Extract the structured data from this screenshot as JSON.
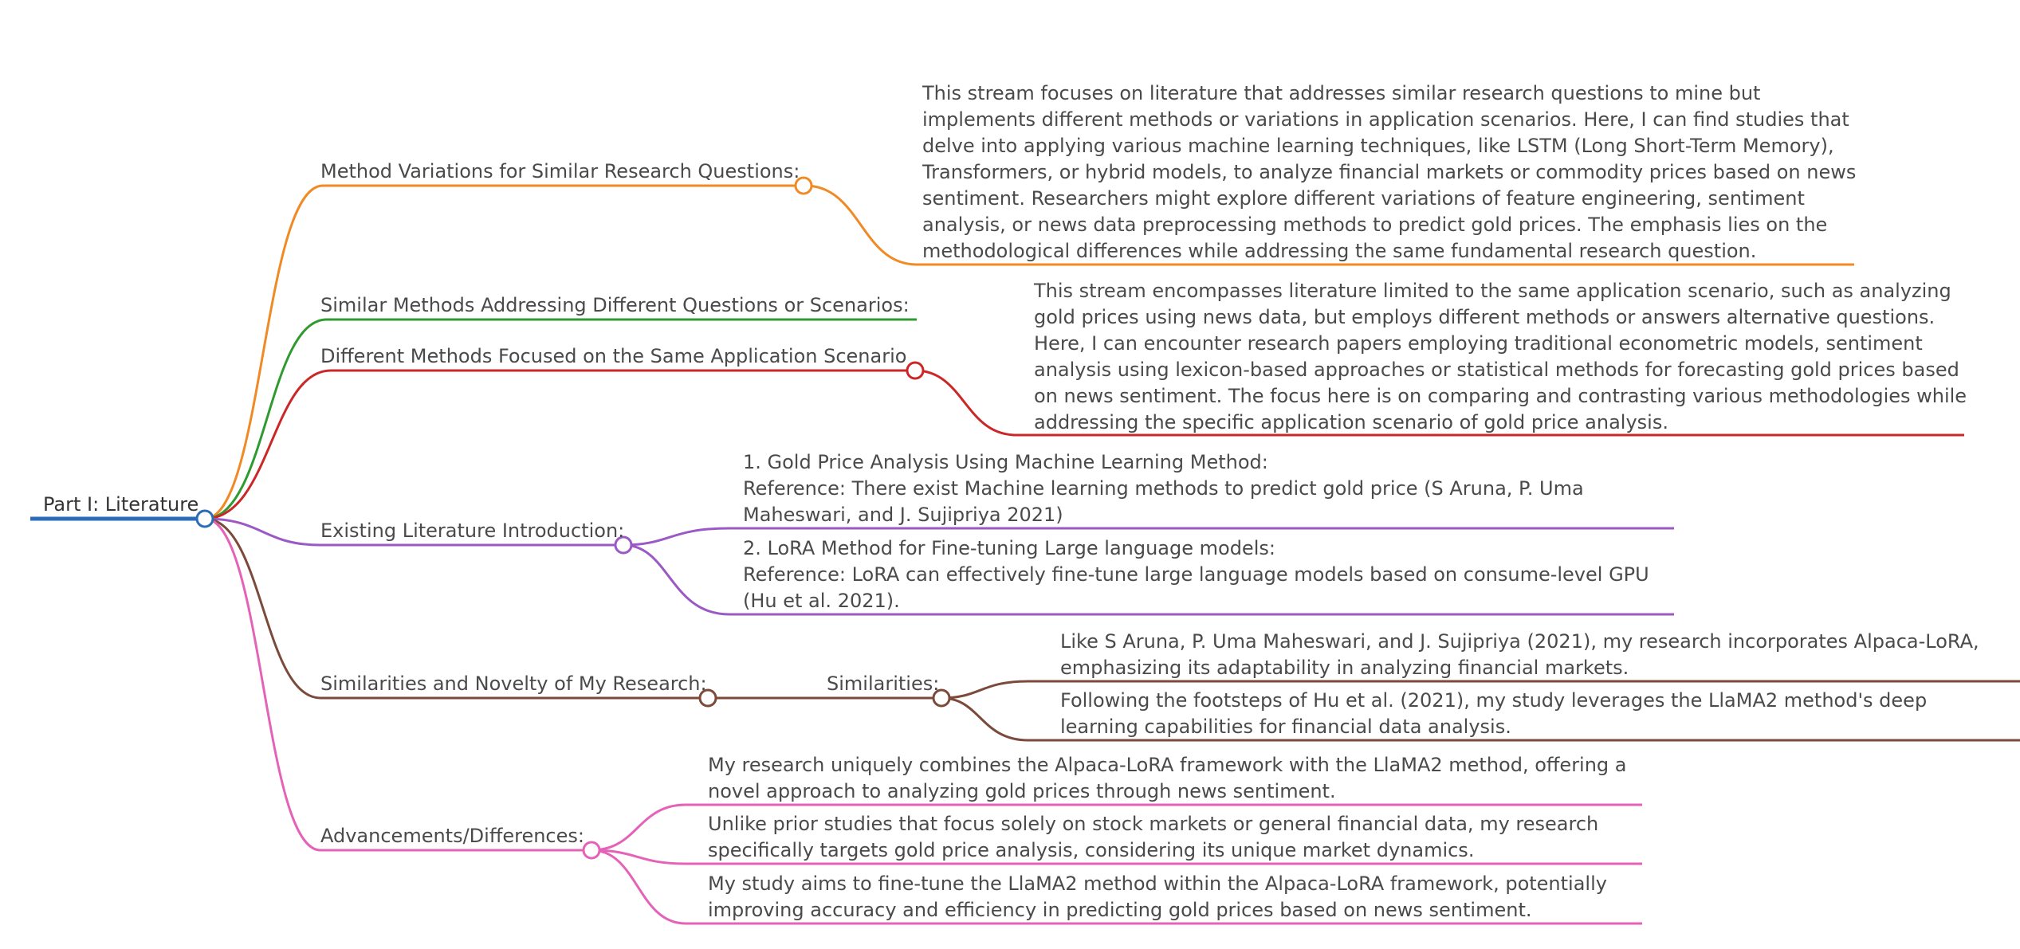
{
  "root": {
    "label": "Part I: Literature",
    "color": "#2a6cb7"
  },
  "branches": [
    {
      "label": "Method Variations for Similar Research Questions:",
      "color": "#f08a25",
      "items": [
        {
          "text": "This stream focuses on literature that addresses similar research questions to mine but\nimplements different methods or variations in application scenarios. Here, I can find studies that\ndelve into applying various machine learning techniques, like LSTM (Long Short-Term Memory),\nTransformers, or hybrid models, to analyze financial markets or commodity prices based on news\nsentiment. Researchers might explore different variations of feature engineering, sentiment\nanalysis, or news data preprocessing methods to predict gold prices. The emphasis lies on the\nmethodological differences while addressing the same fundamental research question."
        }
      ]
    },
    {
      "label": "Similar Methods Addressing Different Questions or Scenarios:",
      "color": "#2f9a2f",
      "items": []
    },
    {
      "label": "Different Methods Focused on the Same Application Scenario",
      "color": "#cc2727",
      "items": [
        {
          "text": "This stream encompasses literature limited to the same application scenario, such as analyzing\ngold prices using news data, but employs different methods or answers alternative questions.\nHere, I can encounter research papers employing traditional econometric models, sentiment\nanalysis using lexicon-based approaches or statistical methods for forecasting gold prices based\non news sentiment. The focus here is on comparing and contrasting various methodologies while\naddressing the specific application scenario of gold price analysis."
        }
      ]
    },
    {
      "label": "Existing Literature Introduction:",
      "color": "#9b59c6",
      "items": [
        {
          "text": "1. Gold Price Analysis Using Machine Learning Method:\nReference: There exist Machine learning methods to predict gold price (S Aruna, P. Uma\nMaheswari, and J. Sujipriya 2021)"
        },
        {
          "text": "2. LoRA Method for Fine-tuning Large language models:\nReference: LoRA can effectively fine-tune large language models based on consume-level GPU\n(Hu et al. 2021)."
        }
      ]
    },
    {
      "label": "Similarities and Novelty of My Research:",
      "color": "#7b4a3a",
      "sub_label": "Similarities:",
      "items": [
        {
          "text": "Like S Aruna, P. Uma Maheswari, and J. Sujipriya (2021), my research incorporates Alpaca-LoRA,\nemphasizing its adaptability in analyzing financial markets."
        },
        {
          "text": "Following the footsteps of Hu et al. (2021), my study leverages the LlaMA2 method's deep\nlearning capabilities for financial data analysis."
        }
      ]
    },
    {
      "label": "Advancements/Differences:",
      "color": "#e462b8",
      "items": [
        {
          "text": "My research uniquely combines the Alpaca-LoRA framework with the LlaMA2 method, offering a\nnovel approach to analyzing gold prices through news sentiment."
        },
        {
          "text": "Unlike prior studies that focus solely on stock markets or general financial data, my research\nspecifically targets gold price analysis, considering its unique market dynamics."
        },
        {
          "text": "My study aims to fine-tune the LlaMA2 method within the Alpaca-LoRA framework, potentially\nimproving accuracy and efficiency in predicting gold prices based on news sentiment."
        }
      ]
    }
  ]
}
